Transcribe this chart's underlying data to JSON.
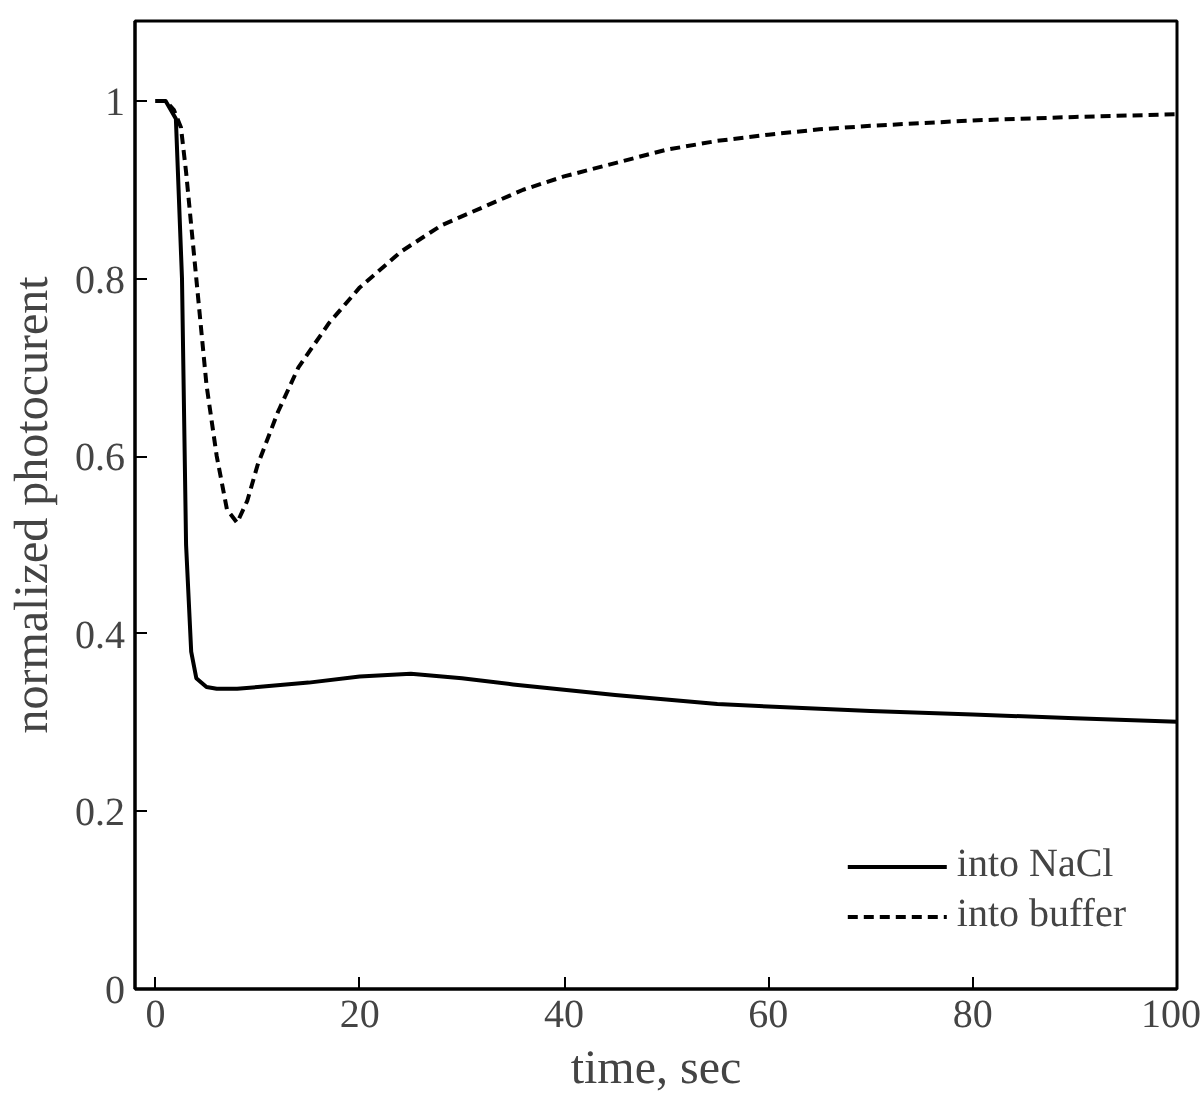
{
  "chart_data": {
    "type": "line",
    "xlabel": "time, sec",
    "ylabel": "normalized photocurent",
    "xlim": [
      -2,
      100
    ],
    "ylim": [
      0,
      1.09
    ],
    "xticks": [
      0,
      20,
      40,
      60,
      80,
      100
    ],
    "yticks": [
      0,
      0.2,
      0.4,
      0.6,
      0.8,
      1
    ],
    "grid": false,
    "legend": "bottom right",
    "marker": "none",
    "series": [
      {
        "name": "into NaCl",
        "color": "#000000",
        "line_style": "solid",
        "x": [
          0,
          1,
          2,
          2.6,
          3,
          3.5,
          4,
          5,
          6,
          8,
          10,
          15,
          20,
          25,
          30,
          35,
          40,
          45,
          50,
          55,
          60,
          70,
          80,
          90,
          100
        ],
        "values": [
          1,
          1,
          0.98,
          0.8,
          0.5,
          0.38,
          0.35,
          0.34,
          0.338,
          0.338,
          0.34,
          0.345,
          0.352,
          0.355,
          0.35,
          0.343,
          0.337,
          0.331,
          0.326,
          0.321,
          0.318,
          0.313,
          0.309,
          0.305,
          0.301
        ]
      },
      {
        "name": "into buffer",
        "color": "#000000",
        "line_style": "dashed",
        "x": [
          0,
          1,
          1.8,
          2.5,
          3,
          4,
          5,
          6,
          7,
          8,
          9,
          10,
          12,
          14,
          17,
          20,
          24,
          28,
          32,
          36,
          40,
          45,
          50,
          55,
          60,
          65,
          70,
          80,
          90,
          100
        ],
        "values": [
          1,
          1,
          0.99,
          0.97,
          0.92,
          0.8,
          0.68,
          0.6,
          0.54,
          0.525,
          0.55,
          0.59,
          0.65,
          0.7,
          0.75,
          0.79,
          0.83,
          0.86,
          0.88,
          0.9,
          0.915,
          0.93,
          0.945,
          0.955,
          0.962,
          0.968,
          0.972,
          0.978,
          0.982,
          0.985
        ]
      }
    ]
  }
}
